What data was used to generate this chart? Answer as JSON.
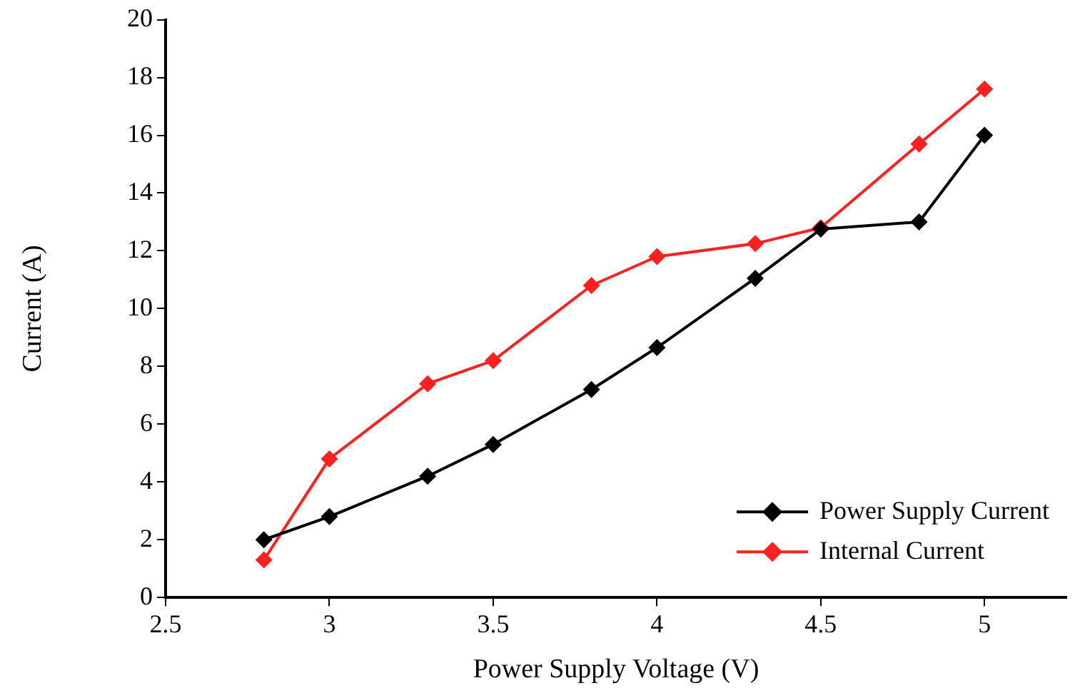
{
  "chart_data": {
    "type": "line",
    "xlabel": "Power Supply Voltage (V)",
    "ylabel": "Current (A)",
    "x": [
      2.8,
      3,
      3.3,
      3.5,
      3.8,
      4,
      4.3,
      4.5,
      4.8,
      5
    ],
    "series": [
      {
        "name": "Power Supply Current",
        "color": "#000000",
        "values": [
          2.0,
          2.8,
          4.2,
          5.3,
          7.2,
          8.65,
          11.05,
          12.75,
          13.0,
          16.0
        ]
      },
      {
        "name": "Internal Current",
        "color": "#ff2020",
        "values": [
          1.3,
          4.8,
          7.4,
          8.2,
          10.8,
          11.8,
          12.25,
          12.8,
          15.7,
          17.6
        ]
      }
    ],
    "xlim": [
      2.5,
      5.25
    ],
    "xticks": [
      2.5,
      3,
      3.5,
      4,
      4.5,
      5
    ],
    "ylim": [
      0,
      20
    ],
    "yticks": [
      0,
      2,
      4,
      6,
      8,
      10,
      12,
      14,
      16,
      18,
      20
    ],
    "grid": false,
    "legend": "bottom right",
    "marker": "diamond",
    "line_style": "solid"
  }
}
